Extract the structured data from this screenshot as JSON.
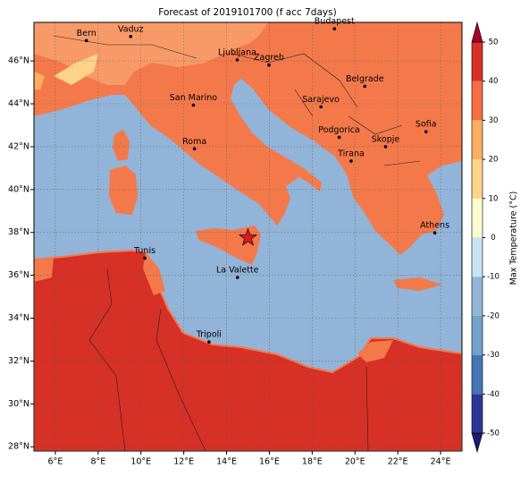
{
  "chart_data": {
    "type": "map",
    "title": "Forecast of 2019101700 (f acc 7days)",
    "xlim": [
      5,
      25
    ],
    "ylim": [
      27.8,
      47.8
    ],
    "xticks": [
      {
        "value": 6,
        "label": "6°E"
      },
      {
        "value": 8,
        "label": "8°E"
      },
      {
        "value": 10,
        "label": "10°E"
      },
      {
        "value": 12,
        "label": "12°E"
      },
      {
        "value": 14,
        "label": "14°E"
      },
      {
        "value": 16,
        "label": "16°E"
      },
      {
        "value": 18,
        "label": "18°E"
      },
      {
        "value": 20,
        "label": "20°E"
      },
      {
        "value": 22,
        "label": "22°E"
      },
      {
        "value": 24,
        "label": "24°E"
      }
    ],
    "yticks": [
      {
        "value": 28,
        "label": "28°N"
      },
      {
        "value": 30,
        "label": "30°N"
      },
      {
        "value": 32,
        "label": "32°N"
      },
      {
        "value": 34,
        "label": "34°N"
      },
      {
        "value": 36,
        "label": "36°N"
      },
      {
        "value": 38,
        "label": "38°N"
      },
      {
        "value": 40,
        "label": "40°N"
      },
      {
        "value": 42,
        "label": "42°N"
      },
      {
        "value": 44,
        "label": "44°N"
      },
      {
        "value": 46,
        "label": "46°N"
      }
    ],
    "grid": true,
    "cities": [
      {
        "name": "Bern",
        "lon": 7.45,
        "lat": 46.95
      },
      {
        "name": "Vaduz",
        "lon": 9.52,
        "lat": 47.14
      },
      {
        "name": "Budapest",
        "lon": 19.04,
        "lat": 47.5
      },
      {
        "name": "Ljubljana",
        "lon": 14.5,
        "lat": 46.05
      },
      {
        "name": "Zagreb",
        "lon": 15.98,
        "lat": 45.81
      },
      {
        "name": "Belgrade",
        "lon": 20.46,
        "lat": 44.82
      },
      {
        "name": "San Marino",
        "lon": 12.45,
        "lat": 43.94
      },
      {
        "name": "Sarajevo",
        "lon": 18.41,
        "lat": 43.86
      },
      {
        "name": "Podgorica",
        "lon": 19.26,
        "lat": 42.44
      },
      {
        "name": "Sofia",
        "lon": 23.32,
        "lat": 42.7
      },
      {
        "name": "Skopje",
        "lon": 21.43,
        "lat": 42.0
      },
      {
        "name": "Roma",
        "lon": 12.5,
        "lat": 41.9
      },
      {
        "name": "Tirana",
        "lon": 19.82,
        "lat": 41.33
      },
      {
        "name": "Athens",
        "lon": 23.73,
        "lat": 37.98
      },
      {
        "name": "Tunis",
        "lon": 10.18,
        "lat": 36.8
      },
      {
        "name": "La Valette",
        "lon": 14.51,
        "lat": 35.9
      },
      {
        "name": "Tripoli",
        "lon": 13.18,
        "lat": 32.89
      }
    ],
    "marker": {
      "lon": 15.0,
      "lat": 37.75,
      "color": "#e31a1c"
    },
    "colorbar": {
      "label": "Max Temperature (°C)",
      "ticks": [
        -50,
        -40,
        -30,
        -20,
        -10,
        0,
        10,
        20,
        30,
        40,
        50
      ],
      "colors": [
        "#313695",
        "#4575b4",
        "#74a0cc",
        "#92b4d8",
        "#c7e3ef",
        "#fffad0",
        "#fdd38a",
        "#fdae61",
        "#f46d43",
        "#d73027"
      ],
      "under_color": "#1a1a70",
      "over_color": "#a50026"
    }
  }
}
